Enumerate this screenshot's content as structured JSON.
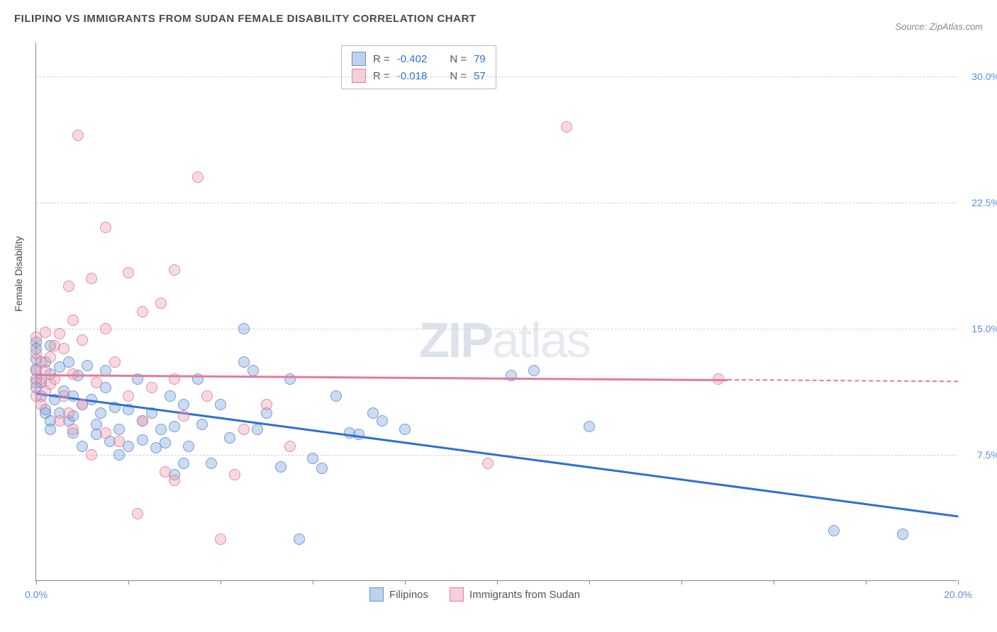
{
  "title": "FILIPINO VS IMMIGRANTS FROM SUDAN FEMALE DISABILITY CORRELATION CHART",
  "source": "Source: ZipAtlas.com",
  "y_axis_label": "Female Disability",
  "watermark": {
    "bold": "ZIP",
    "rest": "atlas"
  },
  "chart": {
    "type": "scatter",
    "xlim": [
      0,
      20
    ],
    "ylim": [
      0,
      32
    ],
    "x_ticks": [
      0,
      2,
      4,
      6,
      8,
      10,
      12,
      14,
      16,
      18,
      20
    ],
    "x_tick_labels": {
      "0": "0.0%",
      "20": "20.0%"
    },
    "y_ticks": [
      7.5,
      15.0,
      22.5,
      30.0
    ],
    "y_tick_labels": [
      "7.5%",
      "15.0%",
      "22.5%",
      "30.0%"
    ],
    "grid_color": "#d0d0d0",
    "background": "#ffffff",
    "axis_color": "#888888",
    "tick_label_color": "#5b8fd6",
    "marker_size": 16,
    "series": [
      {
        "name": "Filipinos",
        "color": "#7ca6de",
        "border": "#5082c8",
        "fill_opacity": 0.4,
        "R": "-0.402",
        "N": "79",
        "trend": {
          "x1": 0,
          "y1": 11.2,
          "x2": 20,
          "y2": 3.9,
          "color": "#2e6fd6",
          "width": 2.5
        },
        "points": [
          [
            0.0,
            14.2
          ],
          [
            0.0,
            13.8
          ],
          [
            0.0,
            13.2
          ],
          [
            0.0,
            12.6
          ],
          [
            0.0,
            12.0
          ],
          [
            0.0,
            11.5
          ],
          [
            0.1,
            11.8
          ],
          [
            0.1,
            11.0
          ],
          [
            0.2,
            13.0
          ],
          [
            0.2,
            10.2
          ],
          [
            0.2,
            10.0
          ],
          [
            0.3,
            14.0
          ],
          [
            0.3,
            12.3
          ],
          [
            0.3,
            9.5
          ],
          [
            0.3,
            9.0
          ],
          [
            0.4,
            10.8
          ],
          [
            0.5,
            12.7
          ],
          [
            0.5,
            10.0
          ],
          [
            0.6,
            11.3
          ],
          [
            0.7,
            13.0
          ],
          [
            0.7,
            9.5
          ],
          [
            0.8,
            11.0
          ],
          [
            0.8,
            9.8
          ],
          [
            0.8,
            8.8
          ],
          [
            0.9,
            12.2
          ],
          [
            1.0,
            10.5
          ],
          [
            1.0,
            8.0
          ],
          [
            1.1,
            12.8
          ],
          [
            1.2,
            10.8
          ],
          [
            1.3,
            9.3
          ],
          [
            1.3,
            8.7
          ],
          [
            1.4,
            10.0
          ],
          [
            1.5,
            12.5
          ],
          [
            1.5,
            11.5
          ],
          [
            1.6,
            8.3
          ],
          [
            1.7,
            10.3
          ],
          [
            1.8,
            9.0
          ],
          [
            1.8,
            7.5
          ],
          [
            2.0,
            10.2
          ],
          [
            2.0,
            8.0
          ],
          [
            2.2,
            12.0
          ],
          [
            2.3,
            9.5
          ],
          [
            2.3,
            8.4
          ],
          [
            2.5,
            10.0
          ],
          [
            2.6,
            7.9
          ],
          [
            2.7,
            9.0
          ],
          [
            2.8,
            8.2
          ],
          [
            2.9,
            11.0
          ],
          [
            3.0,
            9.2
          ],
          [
            3.0,
            6.3
          ],
          [
            3.2,
            10.5
          ],
          [
            3.2,
            7.0
          ],
          [
            3.3,
            8.0
          ],
          [
            3.5,
            12.0
          ],
          [
            3.6,
            9.3
          ],
          [
            3.8,
            7.0
          ],
          [
            4.0,
            10.5
          ],
          [
            4.2,
            8.5
          ],
          [
            4.5,
            15.0
          ],
          [
            4.5,
            13.0
          ],
          [
            4.7,
            12.5
          ],
          [
            4.8,
            9.0
          ],
          [
            5.0,
            10.0
          ],
          [
            5.3,
            6.8
          ],
          [
            5.5,
            12.0
          ],
          [
            5.7,
            2.5
          ],
          [
            6.0,
            7.3
          ],
          [
            6.2,
            6.7
          ],
          [
            6.5,
            11.0
          ],
          [
            6.8,
            8.8
          ],
          [
            7.0,
            8.7
          ],
          [
            7.3,
            10.0
          ],
          [
            7.5,
            9.5
          ],
          [
            8.0,
            9.0
          ],
          [
            10.3,
            12.2
          ],
          [
            10.8,
            12.5
          ],
          [
            12.0,
            9.2
          ],
          [
            17.3,
            3.0
          ],
          [
            18.8,
            2.8
          ]
        ]
      },
      {
        "name": "Immigrants from Sudan",
        "color": "#f0a0b4",
        "border": "#dc6e8c",
        "fill_opacity": 0.4,
        "R": "-0.018",
        "N": "57",
        "trend": {
          "x1": 0,
          "y1": 12.3,
          "x2": 15,
          "y2": 12.0,
          "color": "#e57a9a",
          "width": 2.5,
          "dash_x1": 15,
          "dash_y1": 12.0,
          "dash_x2": 20,
          "dash_y2": 11.9
        },
        "points": [
          [
            0.0,
            14.5
          ],
          [
            0.0,
            13.5
          ],
          [
            0.0,
            12.5
          ],
          [
            0.0,
            11.8
          ],
          [
            0.0,
            11.0
          ],
          [
            0.1,
            13.0
          ],
          [
            0.1,
            12.0
          ],
          [
            0.1,
            10.5
          ],
          [
            0.2,
            14.8
          ],
          [
            0.2,
            12.5
          ],
          [
            0.2,
            11.3
          ],
          [
            0.3,
            13.3
          ],
          [
            0.3,
            11.7
          ],
          [
            0.4,
            14.0
          ],
          [
            0.4,
            12.0
          ],
          [
            0.5,
            14.7
          ],
          [
            0.5,
            9.5
          ],
          [
            0.6,
            13.8
          ],
          [
            0.6,
            11.0
          ],
          [
            0.7,
            17.5
          ],
          [
            0.7,
            10.0
          ],
          [
            0.8,
            15.5
          ],
          [
            0.8,
            12.3
          ],
          [
            0.8,
            9.0
          ],
          [
            0.9,
            26.5
          ],
          [
            1.0,
            14.3
          ],
          [
            1.0,
            10.5
          ],
          [
            1.2,
            18.0
          ],
          [
            1.2,
            7.5
          ],
          [
            1.3,
            11.8
          ],
          [
            1.5,
            21.0
          ],
          [
            1.5,
            15.0
          ],
          [
            1.5,
            8.8
          ],
          [
            1.7,
            13.0
          ],
          [
            1.8,
            8.3
          ],
          [
            2.0,
            18.3
          ],
          [
            2.0,
            11.0
          ],
          [
            2.2,
            4.0
          ],
          [
            2.3,
            16.0
          ],
          [
            2.3,
            9.5
          ],
          [
            2.5,
            11.5
          ],
          [
            2.7,
            16.5
          ],
          [
            2.8,
            6.5
          ],
          [
            3.0,
            18.5
          ],
          [
            3.0,
            12.0
          ],
          [
            3.0,
            6.0
          ],
          [
            3.2,
            9.8
          ],
          [
            3.5,
            24.0
          ],
          [
            3.7,
            11.0
          ],
          [
            4.0,
            2.5
          ],
          [
            4.3,
            6.3
          ],
          [
            4.5,
            9.0
          ],
          [
            5.0,
            10.5
          ],
          [
            5.5,
            8.0
          ],
          [
            9.8,
            7.0
          ],
          [
            11.5,
            27.0
          ],
          [
            14.8,
            12.0
          ]
        ]
      }
    ]
  },
  "legend_top": {
    "rows": [
      {
        "swatch": "blue",
        "r_label": "R =",
        "r_val": "-0.402",
        "n_label": "N =",
        "n_val": "79"
      },
      {
        "swatch": "pink",
        "r_label": "R =",
        "r_val": "-0.018",
        "n_label": "N =",
        "n_val": "57"
      }
    ]
  },
  "legend_bottom": [
    {
      "swatch": "blue",
      "label": "Filipinos"
    },
    {
      "swatch": "pink",
      "label": "Immigrants from Sudan"
    }
  ]
}
